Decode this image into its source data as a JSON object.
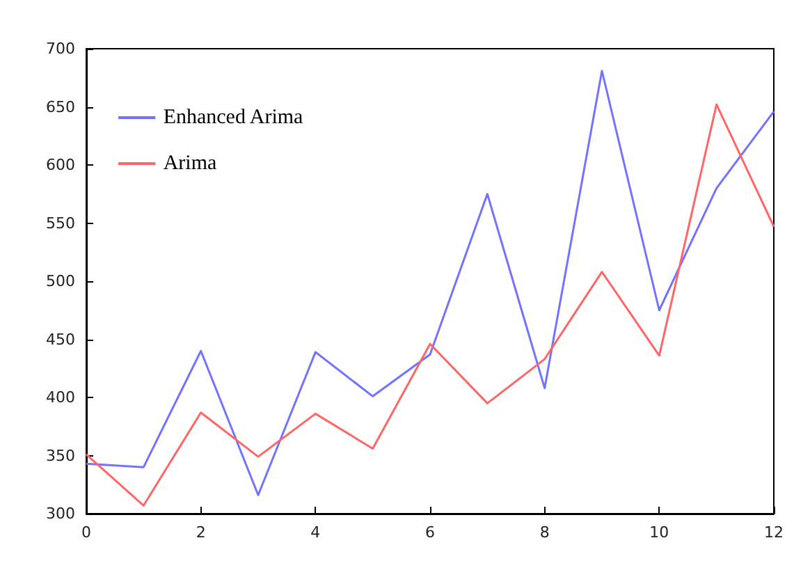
{
  "chart_data": {
    "type": "line",
    "x": [
      0,
      1,
      2,
      3,
      4,
      5,
      6,
      7,
      8,
      9,
      10,
      11,
      12
    ],
    "series": [
      {
        "name": "Enhanced Arima",
        "color": "#7373ff",
        "values": [
          343,
          340,
          440,
          316,
          439,
          401,
          437,
          575,
          408,
          681,
          475,
          580,
          646
        ]
      },
      {
        "name": "Arima",
        "color": "#ff6666",
        "values": [
          351,
          307,
          387,
          349,
          386,
          356,
          446,
          395,
          433,
          508,
          436,
          652,
          547
        ]
      }
    ],
    "xlim": [
      0,
      12
    ],
    "xticks": [
      0,
      2,
      4,
      6,
      8,
      10,
      12
    ],
    "ylim": [
      300,
      700
    ],
    "yticks": [
      300,
      350,
      400,
      450,
      500,
      550,
      600,
      650,
      700
    ],
    "grid": false,
    "legend": "top left",
    "marker": "none",
    "line_style": "solid"
  }
}
